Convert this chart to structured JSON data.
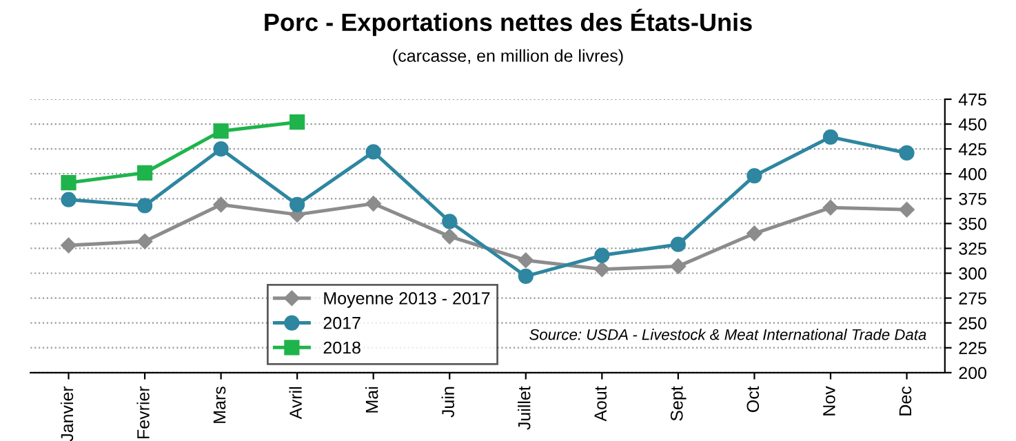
{
  "chart_data": {
    "type": "line",
    "title": "Porc - Exportations nettes des États-Unis",
    "subtitle": "(carcasse, en million de livres)",
    "categories": [
      "Janvier",
      "Fevrier",
      "Mars",
      "Avril",
      "Mai",
      "Juin",
      "Juillet",
      "Aout",
      "Sept",
      "Oct",
      "Nov",
      "Dec"
    ],
    "series": [
      {
        "name": "Moyenne 2013 - 2017",
        "color": "#8c8c8c",
        "marker": "diamond",
        "values": [
          328,
          332,
          369,
          359,
          370,
          337,
          313,
          304,
          307,
          340,
          366,
          364
        ]
      },
      {
        "name": "2017",
        "color": "#2e86a0",
        "marker": "circle",
        "values": [
          374,
          368,
          425,
          369,
          422,
          352,
          297,
          318,
          329,
          398,
          437,
          421
        ]
      },
      {
        "name": "2018",
        "color": "#1fb44b",
        "marker": "square",
        "values": [
          391,
          401,
          443,
          452,
          null,
          null,
          null,
          null,
          null,
          null,
          null,
          null
        ]
      }
    ],
    "ylim": [
      200,
      475
    ],
    "yticks": [
      200,
      225,
      250,
      275,
      300,
      325,
      350,
      375,
      400,
      425,
      450,
      475
    ],
    "grid": "y",
    "legend": "bottom left",
    "annotations": [
      "Source: USDA - Livestock & Meat International Trade Data"
    ]
  }
}
